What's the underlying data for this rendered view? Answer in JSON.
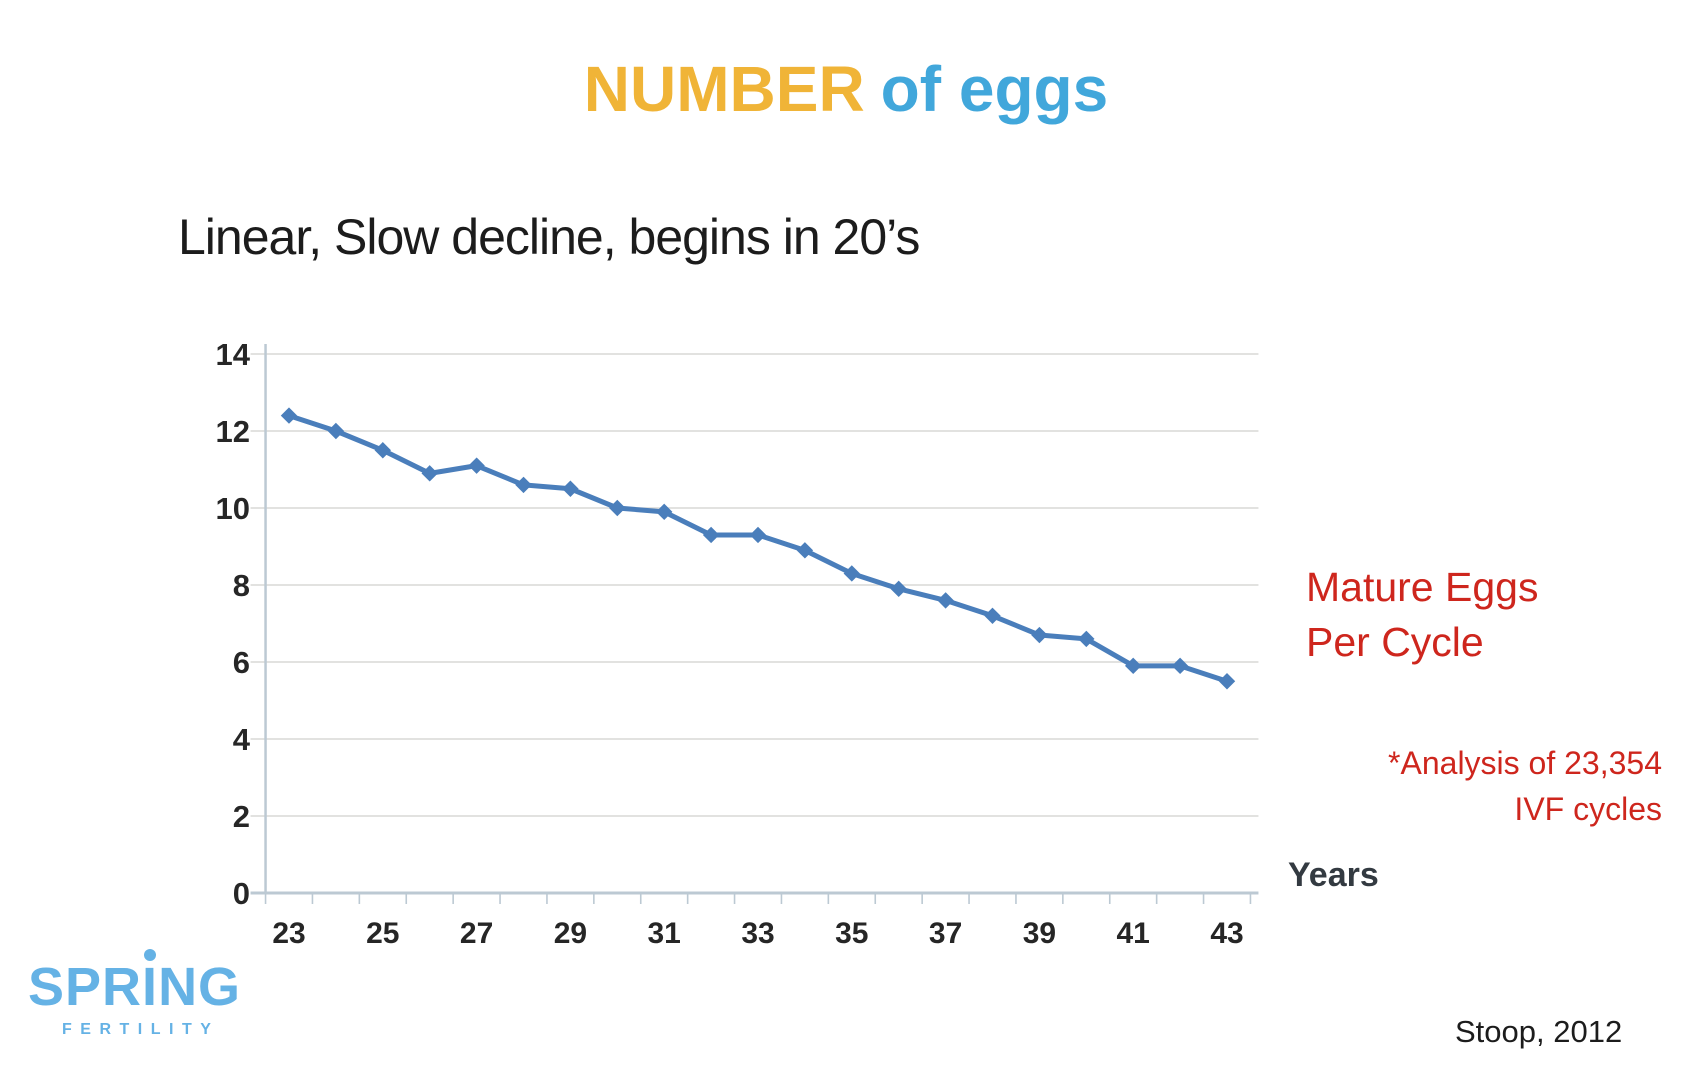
{
  "slide": {
    "title": {
      "part1": "NUMBER",
      "part2": "of eggs"
    },
    "subtitle": "Linear, Slow decline, begins in 20’s",
    "right_label": {
      "line1": "Mature Eggs",
      "line2": "Per Cycle"
    },
    "footnote": {
      "line1": "*Analysis of 23,354",
      "line2": "IVF cycles"
    },
    "x_axis_title": "Years",
    "citation": "Stoop, 2012",
    "logo": {
      "brand_pre": "SPR",
      "brand_i": "I",
      "brand_post": "NG",
      "subtext": "FERTILITY"
    }
  },
  "colors": {
    "title_yellow": "#F0B437",
    "title_blue": "#41A7DB",
    "annotation_red": "#CE261D",
    "line_blue": "#4A7EBB",
    "logo_blue": "#65B2E5",
    "text_dark": "#1C1C1C",
    "tick_label": "#262626",
    "gridline": "#D8D8D5",
    "axis_line": "#BCC9D3"
  },
  "chart_data": {
    "type": "line",
    "title": "",
    "xlabel": "Years",
    "ylabel": "",
    "x": [
      23,
      24,
      25,
      26,
      27,
      28,
      29,
      30,
      31,
      32,
      33,
      34,
      35,
      36,
      37,
      38,
      39,
      40,
      41,
      42,
      43
    ],
    "series": [
      {
        "name": "Mature Eggs Per Cycle",
        "values": [
          12.4,
          12.0,
          11.5,
          10.9,
          11.1,
          10.6,
          10.5,
          10.0,
          9.9,
          9.3,
          9.3,
          8.9,
          8.3,
          7.9,
          7.6,
          7.2,
          6.7,
          6.6,
          5.9,
          5.9,
          5.5
        ]
      }
    ],
    "xlim": [
      22.5,
      43.5
    ],
    "ylim": [
      0,
      14
    ],
    "xtick_labels": [
      23,
      25,
      27,
      29,
      31,
      33,
      35,
      37,
      39,
      41,
      43
    ],
    "ytick_labels": [
      0,
      2,
      4,
      6,
      8,
      10,
      12,
      14
    ],
    "x_minor_ticks_step": 1,
    "grid": "horizontal",
    "legend": "none",
    "marker": "diamond"
  }
}
